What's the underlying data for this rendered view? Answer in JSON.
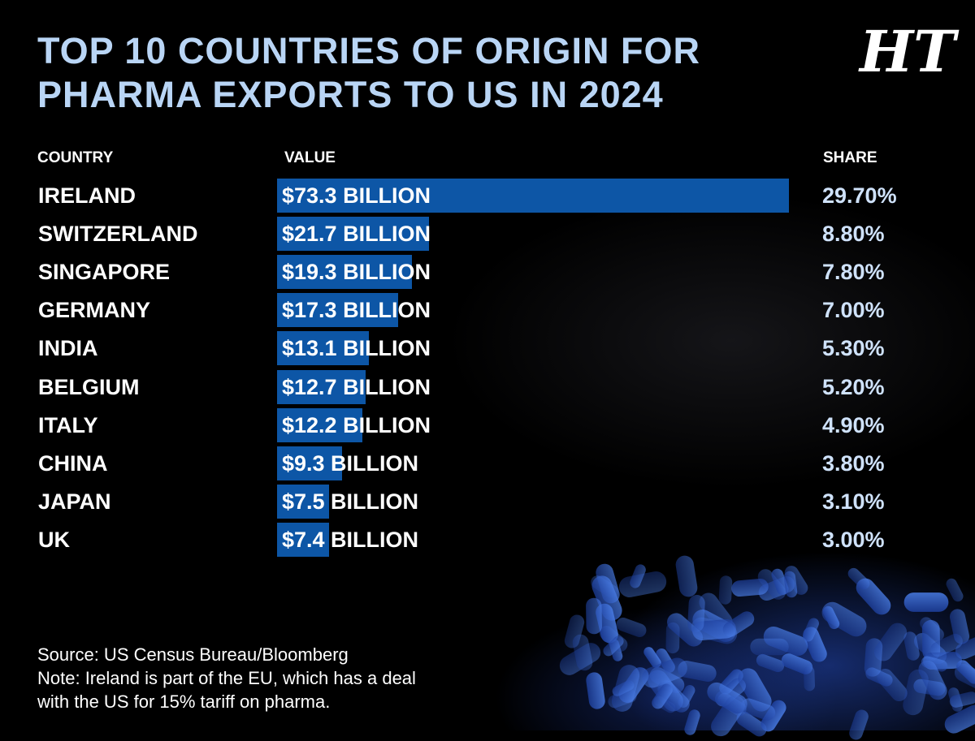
{
  "title_line1": "TOP 10 COUNTRIES OF ORIGIN FOR",
  "title_line2": "PHARMA EXPORTS TO US IN 2024",
  "logo_text": "HT",
  "headers": {
    "country": "COUNTRY",
    "value": "VALUE",
    "share": "SHARE"
  },
  "chart_data": {
    "type": "bar",
    "unit": "Billion USD",
    "categories": [
      "IRELAND",
      "SWITZERLAND",
      "SINGAPORE",
      "GERMANY",
      "INDIA",
      "BELGIUM",
      "ITALY",
      "CHINA",
      "JAPAN",
      "UK"
    ],
    "values": [
      73.3,
      21.7,
      19.3,
      17.3,
      13.1,
      12.7,
      12.2,
      9.3,
      7.5,
      7.4
    ],
    "value_labels": [
      "$73.3 BILLION",
      "$21.7 BILLION",
      "$19.3 BILLION",
      "$17.3 BILLION",
      "$13.1 BILLION",
      "$12.7 BILLION",
      "$12.2 BILLION",
      "$9.3 BILLION",
      "$7.5 BILLION",
      "$7.4 BILLION"
    ],
    "shares": [
      "29.70%",
      "8.80%",
      "7.80%",
      "7.00%",
      "5.30%",
      "5.20%",
      "4.90%",
      "3.80%",
      "3.10%",
      "3.00%"
    ],
    "bar_color": "#0d56a6"
  },
  "source": "Source: US Census Bureau/Bloomberg",
  "note_line1": "Note: Ireland is part of the EU, which has a deal",
  "note_line2": "with the US for 15% tariff on pharma."
}
